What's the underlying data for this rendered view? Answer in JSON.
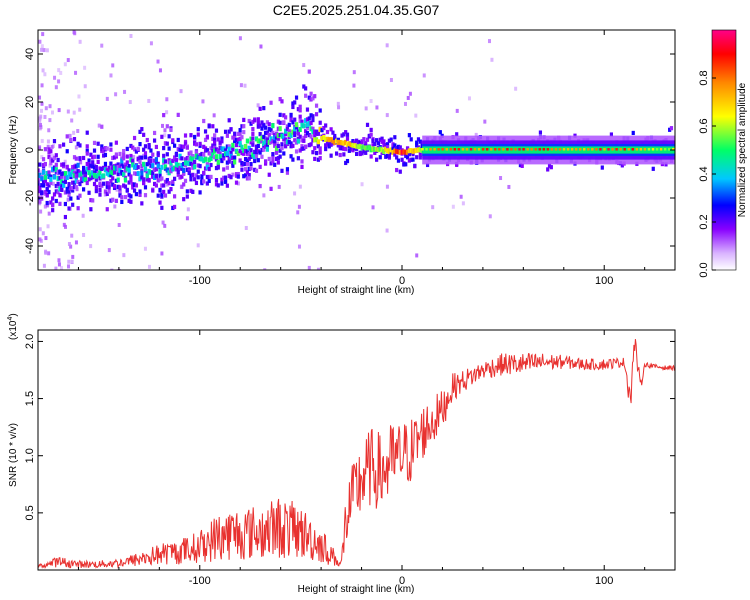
{
  "figure_title": "C2E5.2025.251.04.35.G07",
  "chart_data": [
    {
      "type": "heatmap",
      "title": "C2E5.2025.251.04.35.G07",
      "xlabel": "Height of straight line (km)",
      "ylabel": "Frequency (Hz)",
      "xlim": [
        -180,
        135
      ],
      "ylim": [
        -50,
        50
      ],
      "xticks": [
        -100,
        0,
        100
      ],
      "yticks": [
        -40,
        -20,
        0,
        20,
        40
      ],
      "colorbar": {
        "label": "Normalized spectral amplitude",
        "range": [
          0,
          1
        ],
        "ticks": [
          0.0,
          0.2,
          0.4,
          0.6,
          0.8
        ],
        "colormap": [
          "#ffffff",
          "#d9b3ff",
          "#8800ff",
          "#0000ff",
          "#00c8ff",
          "#00ff66",
          "#ffff00",
          "#ff8800",
          "#ff0000",
          "#ff0088"
        ]
      },
      "ridge": {
        "x": [
          -180,
          -160,
          -140,
          -120,
          -100,
          -80,
          -60,
          -45,
          -40,
          -30,
          -20,
          -10,
          0,
          10,
          20,
          40,
          60,
          80,
          100,
          110,
          120,
          135
        ],
        "freq": [
          -12,
          -11,
          -9,
          -7,
          -4,
          0,
          5,
          12,
          5,
          3,
          1,
          0,
          -1,
          0,
          0,
          0,
          0,
          0,
          0,
          0,
          0,
          0
        ],
        "peak_amplitude": [
          0.45,
          0.45,
          0.45,
          0.45,
          0.45,
          0.5,
          0.5,
          0.55,
          0.7,
          0.8,
          0.6,
          0.6,
          0.9,
          0.6,
          0.85,
          0.85,
          0.85,
          0.8,
          0.85,
          0.9,
          0.7,
          0.6
        ]
      }
    },
    {
      "type": "line",
      "xlabel": "Height of straight line (km)",
      "ylabel": "SNR (10 * v/v)",
      "y_scale_label": "(x10^4)",
      "y_scale_base": "(x10",
      "y_scale_exp": "4",
      "y_scale_close": ")",
      "xlim": [
        -180,
        135
      ],
      "ylim": [
        0.0,
        2.1
      ],
      "xticks": [
        -100,
        0,
        100
      ],
      "yticks": [
        0.5,
        1.0,
        1.5,
        2.0
      ],
      "series": [
        {
          "name": "SNR",
          "color": "#e8312f",
          "x": [
            -180,
            -170,
            -160,
            -150,
            -140,
            -130,
            -120,
            -110,
            -100,
            -90,
            -80,
            -70,
            -60,
            -50,
            -40,
            -35,
            -30,
            -28,
            -25,
            -20,
            -15,
            -10,
            -5,
            0,
            5,
            10,
            15,
            20,
            25,
            30,
            40,
            50,
            60,
            70,
            80,
            90,
            100,
            110,
            113,
            115,
            118,
            120,
            125,
            130,
            135
          ],
          "y": [
            0.05,
            0.08,
            0.06,
            0.06,
            0.07,
            0.1,
            0.14,
            0.16,
            0.2,
            0.25,
            0.28,
            0.3,
            0.32,
            0.3,
            0.2,
            0.12,
            0.06,
            0.4,
            0.6,
            0.8,
            0.9,
            0.85,
            0.95,
            1.0,
            1.05,
            1.2,
            1.3,
            1.4,
            1.6,
            1.65,
            1.75,
            1.8,
            1.8,
            1.82,
            1.82,
            1.8,
            1.8,
            1.82,
            1.5,
            2.0,
            1.6,
            1.8,
            1.78,
            1.77,
            1.77
          ],
          "noise_amplitude": [
            0.02,
            0.06,
            0.04,
            0.04,
            0.05,
            0.08,
            0.12,
            0.14,
            0.18,
            0.28,
            0.3,
            0.3,
            0.35,
            0.3,
            0.2,
            0.12,
            0.04,
            0.25,
            0.3,
            0.35,
            0.35,
            0.35,
            0.35,
            0.3,
            0.3,
            0.25,
            0.22,
            0.18,
            0.12,
            0.1,
            0.08,
            0.1,
            0.1,
            0.08,
            0.06,
            0.05,
            0.05,
            0.04,
            0.15,
            0.1,
            0.05,
            0.02,
            0.02,
            0.02,
            0.02
          ]
        }
      ]
    }
  ]
}
